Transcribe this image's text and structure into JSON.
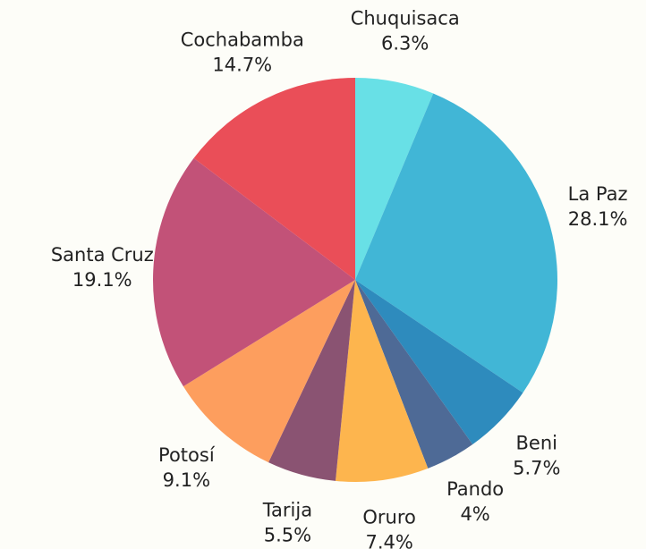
{
  "chart_data": {
    "type": "pie",
    "categories": [
      "Chuquisaca",
      "La Paz",
      "Beni",
      "Pando",
      "Oruro",
      "Tarija",
      "Potosí",
      "Santa Cruz",
      "Cochabamba"
    ],
    "values": [
      6.3,
      28.1,
      5.7,
      4,
      7.4,
      5.5,
      9.1,
      19.1,
      14.7
    ],
    "value_labels": [
      "6.3%",
      "28.1%",
      "5.7%",
      "4%",
      "7.4%",
      "5.5%",
      "9.1%",
      "19.1%",
      "14.7%"
    ],
    "colors": [
      "#68e0e6",
      "#41b6d6",
      "#2e8bbd",
      "#4e6a96",
      "#fdb54e",
      "#8a5372",
      "#fd9e5e",
      "#c25278",
      "#ea4e58"
    ]
  }
}
